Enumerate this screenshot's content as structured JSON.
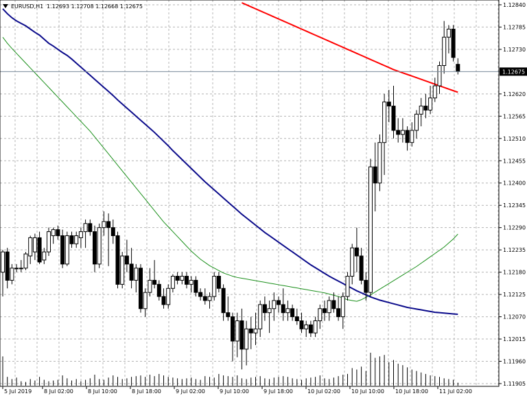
{
  "header": {
    "symbol": "EURUSD,H1",
    "ohlc": "1.12693 1.12708 1.12668 1.12675"
  },
  "colors": {
    "background": "#ffffff",
    "grid": "#b4b4b4",
    "bull_body": "#ffffff",
    "bear_body": "#000000",
    "candle_wick": "#000000",
    "volume": "#000000",
    "ma_fast": "#0b0b8b",
    "ma_slow": "#ff0000",
    "ma_green": "#1a8f1a",
    "price_line": "#7a8a9a",
    "price_tag_bg": "#000000",
    "price_tag_text": "#ffffff"
  },
  "chart_data": {
    "type": "candlestick",
    "grid": true,
    "price_axis": {
      "ticks": [
        "1.12840",
        "1.12785",
        "1.12730",
        "1.12620",
        "1.12565",
        "1.12510",
        "1.12455",
        "1.12400",
        "1.12345",
        "1.12290",
        "1.12235",
        "1.12180",
        "1.12125",
        "1.12070",
        "1.12015",
        "1.11960",
        "1.11905"
      ],
      "current": "1.12675",
      "ylim": [
        1.11905,
        1.12845
      ]
    },
    "time_axis": {
      "labels": [
        "5 Jul 2019",
        "8 Jul 02:00",
        "8 Jul 10:00",
        "8 Jul 18:00",
        "9 Jul 02:00",
        "9 Jul 10:00",
        "9 Jul 18:00",
        "10 Jul 02:00",
        "10 Jul 10:00",
        "10 Jul 18:00",
        "11 Jul 02:00"
      ]
    },
    "candles": [
      {
        "o": 1.1218,
        "h": 1.12235,
        "l": 1.1212,
        "c": 1.1223
      },
      {
        "o": 1.1223,
        "h": 1.1224,
        "l": 1.1214,
        "c": 1.1216
      },
      {
        "o": 1.1216,
        "h": 1.122,
        "l": 1.1215,
        "c": 1.1219
      },
      {
        "o": 1.1219,
        "h": 1.122,
        "l": 1.1218,
        "c": 1.1219
      },
      {
        "o": 1.1219,
        "h": 1.1221,
        "l": 1.1218,
        "c": 1.1219
      },
      {
        "o": 1.1219,
        "h": 1.1223,
        "l": 1.12185,
        "c": 1.12225
      },
      {
        "o": 1.1222,
        "h": 1.1227,
        "l": 1.122,
        "c": 1.12265
      },
      {
        "o": 1.1223,
        "h": 1.12275,
        "l": 1.1221,
        "c": 1.12265
      },
      {
        "o": 1.12265,
        "h": 1.1228,
        "l": 1.122,
        "c": 1.12205
      },
      {
        "o": 1.1221,
        "h": 1.1224,
        "l": 1.122,
        "c": 1.1223
      },
      {
        "o": 1.1223,
        "h": 1.1229,
        "l": 1.1222,
        "c": 1.1228
      },
      {
        "o": 1.1227,
        "h": 1.1229,
        "l": 1.1225,
        "c": 1.12285
      },
      {
        "o": 1.12285,
        "h": 1.12295,
        "l": 1.1226,
        "c": 1.1227
      },
      {
        "o": 1.1227,
        "h": 1.12285,
        "l": 1.1219,
        "c": 1.122
      },
      {
        "o": 1.122,
        "h": 1.1228,
        "l": 1.12195,
        "c": 1.1227
      },
      {
        "o": 1.1227,
        "h": 1.1228,
        "l": 1.1224,
        "c": 1.1225
      },
      {
        "o": 1.1225,
        "h": 1.1228,
        "l": 1.1224,
        "c": 1.1227
      },
      {
        "o": 1.12265,
        "h": 1.1229,
        "l": 1.1224,
        "c": 1.1228
      },
      {
        "o": 1.1228,
        "h": 1.1231,
        "l": 1.1224,
        "c": 1.123
      },
      {
        "o": 1.123,
        "h": 1.1231,
        "l": 1.1227,
        "c": 1.1228
      },
      {
        "o": 1.1228,
        "h": 1.12295,
        "l": 1.1218,
        "c": 1.122
      },
      {
        "o": 1.122,
        "h": 1.123,
        "l": 1.1219,
        "c": 1.1229
      },
      {
        "o": 1.1229,
        "h": 1.1233,
        "l": 1.1227,
        "c": 1.12305
      },
      {
        "o": 1.12305,
        "h": 1.12325,
        "l": 1.12195,
        "c": 1.1229
      },
      {
        "o": 1.1229,
        "h": 1.1231,
        "l": 1.1225,
        "c": 1.1227
      },
      {
        "o": 1.1227,
        "h": 1.1228,
        "l": 1.1214,
        "c": 1.1215
      },
      {
        "o": 1.1215,
        "h": 1.1223,
        "l": 1.1214,
        "c": 1.1222
      },
      {
        "o": 1.1222,
        "h": 1.1226,
        "l": 1.1218,
        "c": 1.122
      },
      {
        "o": 1.122,
        "h": 1.1224,
        "l": 1.1214,
        "c": 1.1216
      },
      {
        "o": 1.1216,
        "h": 1.122,
        "l": 1.1213,
        "c": 1.1219
      },
      {
        "o": 1.1219,
        "h": 1.122,
        "l": 1.1208,
        "c": 1.1209
      },
      {
        "o": 1.1209,
        "h": 1.1214,
        "l": 1.1207,
        "c": 1.1213
      },
      {
        "o": 1.1213,
        "h": 1.1219,
        "l": 1.1212,
        "c": 1.1216
      },
      {
        "o": 1.1216,
        "h": 1.1221,
        "l": 1.1214,
        "c": 1.1215
      },
      {
        "o": 1.1215,
        "h": 1.1216,
        "l": 1.1211,
        "c": 1.1212
      },
      {
        "o": 1.1212,
        "h": 1.1214,
        "l": 1.1209,
        "c": 1.121
      },
      {
        "o": 1.121,
        "h": 1.1215,
        "l": 1.1209,
        "c": 1.1214
      },
      {
        "o": 1.1214,
        "h": 1.12175,
        "l": 1.1213,
        "c": 1.1217
      },
      {
        "o": 1.1217,
        "h": 1.1218,
        "l": 1.1215,
        "c": 1.1216
      },
      {
        "o": 1.1216,
        "h": 1.1218,
        "l": 1.1215,
        "c": 1.1217
      },
      {
        "o": 1.1217,
        "h": 1.1218,
        "l": 1.1214,
        "c": 1.1215
      },
      {
        "o": 1.1215,
        "h": 1.1217,
        "l": 1.1213,
        "c": 1.1216
      },
      {
        "o": 1.1216,
        "h": 1.1217,
        "l": 1.1212,
        "c": 1.1213
      },
      {
        "o": 1.1213,
        "h": 1.1214,
        "l": 1.1211,
        "c": 1.1212
      },
      {
        "o": 1.1212,
        "h": 1.1214,
        "l": 1.121,
        "c": 1.1211
      },
      {
        "o": 1.1211,
        "h": 1.1213,
        "l": 1.1209,
        "c": 1.1212
      },
      {
        "o": 1.1212,
        "h": 1.1218,
        "l": 1.1211,
        "c": 1.1217
      },
      {
        "o": 1.1217,
        "h": 1.1218,
        "l": 1.1213,
        "c": 1.1214
      },
      {
        "o": 1.1214,
        "h": 1.1215,
        "l": 1.1206,
        "c": 1.1208
      },
      {
        "o": 1.1208,
        "h": 1.1212,
        "l": 1.1206,
        "c": 1.1207
      },
      {
        "o": 1.1207,
        "h": 1.1208,
        "l": 1.1196,
        "c": 1.1201
      },
      {
        "o": 1.1201,
        "h": 1.1208,
        "l": 1.1197,
        "c": 1.1206
      },
      {
        "o": 1.1206,
        "h": 1.1209,
        "l": 1.1194,
        "c": 1.1199
      },
      {
        "o": 1.1199,
        "h": 1.1206,
        "l": 1.1195,
        "c": 1.1204
      },
      {
        "o": 1.1204,
        "h": 1.1207,
        "l": 1.1199,
        "c": 1.1203
      },
      {
        "o": 1.1203,
        "h": 1.1208,
        "l": 1.12,
        "c": 1.1204
      },
      {
        "o": 1.1204,
        "h": 1.1211,
        "l": 1.1202,
        "c": 1.121
      },
      {
        "o": 1.121,
        "h": 1.1212,
        "l": 1.1206,
        "c": 1.1208
      },
      {
        "o": 1.1208,
        "h": 1.1211,
        "l": 1.1203,
        "c": 1.1209
      },
      {
        "o": 1.1209,
        "h": 1.1213,
        "l": 1.1206,
        "c": 1.1211
      },
      {
        "o": 1.1211,
        "h": 1.1212,
        "l": 1.1208,
        "c": 1.121
      },
      {
        "o": 1.121,
        "h": 1.1214,
        "l": 1.1206,
        "c": 1.1208
      },
      {
        "o": 1.1208,
        "h": 1.1211,
        "l": 1.1206,
        "c": 1.1209
      },
      {
        "o": 1.1209,
        "h": 1.121,
        "l": 1.1206,
        "c": 1.1207
      },
      {
        "o": 1.1207,
        "h": 1.1209,
        "l": 1.1205,
        "c": 1.1206
      },
      {
        "o": 1.1206,
        "h": 1.1208,
        "l": 1.1203,
        "c": 1.1204
      },
      {
        "o": 1.1204,
        "h": 1.1206,
        "l": 1.1202,
        "c": 1.1205
      },
      {
        "o": 1.1205,
        "h": 1.1206,
        "l": 1.1202,
        "c": 1.1203
      },
      {
        "o": 1.1203,
        "h": 1.1207,
        "l": 1.1202,
        "c": 1.1206
      },
      {
        "o": 1.1206,
        "h": 1.121,
        "l": 1.1204,
        "c": 1.1209
      },
      {
        "o": 1.1209,
        "h": 1.1211,
        "l": 1.1206,
        "c": 1.1208
      },
      {
        "o": 1.1208,
        "h": 1.1212,
        "l": 1.1206,
        "c": 1.1211
      },
      {
        "o": 1.1211,
        "h": 1.1213,
        "l": 1.1208,
        "c": 1.1209
      },
      {
        "o": 1.1209,
        "h": 1.1212,
        "l": 1.1206,
        "c": 1.1207
      },
      {
        "o": 1.1207,
        "h": 1.1213,
        "l": 1.1204,
        "c": 1.1212
      },
      {
        "o": 1.1212,
        "h": 1.1218,
        "l": 1.1211,
        "c": 1.1217
      },
      {
        "o": 1.1217,
        "h": 1.1225,
        "l": 1.1215,
        "c": 1.1224
      },
      {
        "o": 1.1224,
        "h": 1.1229,
        "l": 1.1218,
        "c": 1.1222
      },
      {
        "o": 1.1222,
        "h": 1.1224,
        "l": 1.1215,
        "c": 1.1216
      },
      {
        "o": 1.1216,
        "h": 1.1218,
        "l": 1.1211,
        "c": 1.1213
      },
      {
        "o": 1.1213,
        "h": 1.1246,
        "l": 1.1212,
        "c": 1.1244
      },
      {
        "o": 1.1244,
        "h": 1.125,
        "l": 1.1233,
        "c": 1.124
      },
      {
        "o": 1.124,
        "h": 1.1252,
        "l": 1.1238,
        "c": 1.125
      },
      {
        "o": 1.125,
        "h": 1.1262,
        "l": 1.1242,
        "c": 1.126
      },
      {
        "o": 1.126,
        "h": 1.1263,
        "l": 1.1255,
        "c": 1.1259
      },
      {
        "o": 1.1259,
        "h": 1.1264,
        "l": 1.1251,
        "c": 1.1253
      },
      {
        "o": 1.1253,
        "h": 1.1256,
        "l": 1.125,
        "c": 1.1252
      },
      {
        "o": 1.1252,
        "h": 1.1256,
        "l": 1.125,
        "c": 1.1253
      },
      {
        "o": 1.1253,
        "h": 1.1254,
        "l": 1.1248,
        "c": 1.125
      },
      {
        "o": 1.125,
        "h": 1.1255,
        "l": 1.1249,
        "c": 1.1253
      },
      {
        "o": 1.1253,
        "h": 1.1258,
        "l": 1.1251,
        "c": 1.1257
      },
      {
        "o": 1.1257,
        "h": 1.1261,
        "l": 1.1254,
        "c": 1.1259
      },
      {
        "o": 1.1259,
        "h": 1.1262,
        "l": 1.1256,
        "c": 1.1258
      },
      {
        "o": 1.1258,
        "h": 1.1264,
        "l": 1.1257,
        "c": 1.1261
      },
      {
        "o": 1.1261,
        "h": 1.1266,
        "l": 1.126,
        "c": 1.1264
      },
      {
        "o": 1.1264,
        "h": 1.127,
        "l": 1.1262,
        "c": 1.1269
      },
      {
        "o": 1.1269,
        "h": 1.128,
        "l": 1.1267,
        "c": 1.1276
      },
      {
        "o": 1.1276,
        "h": 1.1279,
        "l": 1.1272,
        "c": 1.1278
      },
      {
        "o": 1.1278,
        "h": 1.1279,
        "l": 1.127,
        "c": 1.1271
      },
      {
        "o": 1.12693,
        "h": 1.12708,
        "l": 1.12668,
        "c": 1.12675
      }
    ],
    "volume": [
      40,
      12,
      9,
      11,
      6,
      5,
      9,
      7,
      12,
      8,
      6,
      7,
      8,
      14,
      10,
      7,
      9,
      6,
      8,
      10,
      15,
      9,
      8,
      11,
      14,
      12,
      9,
      10,
      12,
      13,
      14,
      12,
      15,
      13,
      16,
      14,
      12,
      11,
      10,
      9,
      10,
      11,
      9,
      8,
      13,
      12,
      11,
      16,
      14,
      13,
      12,
      14,
      10,
      9,
      11,
      12,
      13,
      10,
      9,
      11,
      12,
      13,
      12,
      10,
      9,
      8,
      10,
      11,
      12,
      14,
      10,
      9,
      11,
      13,
      15,
      16,
      24,
      22,
      26,
      20,
      45,
      38,
      40,
      42,
      32,
      35,
      30,
      28,
      25,
      22,
      20,
      18,
      16,
      14,
      13,
      12,
      10,
      9,
      8,
      4
    ],
    "ma_fast": [
      1.1283,
      1.12818,
      1.12808,
      1.128,
      1.12794,
      1.12788,
      1.1278,
      1.12772,
      1.12765,
      1.12755,
      1.12745,
      1.12738,
      1.1273,
      1.12722,
      1.12715,
      1.12706,
      1.12696,
      1.12686,
      1.12676,
      1.12666,
      1.12656,
      1.12646,
      1.12636,
      1.12626,
      1.12616,
      1.12605,
      1.12595,
      1.12585,
      1.12575,
      1.12565,
      1.12555,
      1.12545,
      1.12535,
      1.12525,
      1.12514,
      1.12503,
      1.12492,
      1.1248,
      1.12469,
      1.12458,
      1.12447,
      1.12436,
      1.12425,
      1.12414,
      1.12403,
      1.12393,
      1.12383,
      1.12373,
      1.12363,
      1.12353,
      1.12343,
      1.12333,
      1.12323,
      1.12314,
      1.12305,
      1.12296,
      1.12287,
      1.12278,
      1.1227,
      1.12262,
      1.12254,
      1.12246,
      1.12238,
      1.1223,
      1.12222,
      1.12214,
      1.12206,
      1.12198,
      1.12191,
      1.12184,
      1.12177,
      1.1217,
      1.12164,
      1.12158,
      1.12152,
      1.12146,
      1.1214,
      1.12134,
      1.12129,
      1.12124,
      1.12119,
      1.12115,
      1.12111,
      1.12108,
      1.12105,
      1.12102,
      1.12099,
      1.12096,
      1.12093,
      1.12091,
      1.12089,
      1.12087,
      1.12085,
      1.12083,
      1.12081,
      1.1208,
      1.12079,
      1.12078,
      1.12077,
      1.12076
    ],
    "ma_slow": [
      1.12845,
      1.1284,
      1.12835,
      1.1283,
      1.12825,
      1.1282,
      1.12815,
      1.1281,
      1.12805,
      1.128,
      1.12795,
      1.1279,
      1.12785,
      1.1278,
      1.12775,
      1.1277,
      1.12765,
      1.1276,
      1.12755,
      1.1275,
      1.12745,
      1.1274,
      1.12735,
      1.1273,
      1.12725,
      1.1272,
      1.12715,
      1.1271,
      1.12705,
      1.127,
      1.12695,
      1.1269,
      1.12685,
      1.1268,
      1.12676,
      1.12672,
      1.12668,
      1.12664,
      1.1266,
      1.12656,
      1.12652,
      1.12648,
      1.12644,
      1.1264,
      1.12636,
      1.12632,
      1.12628,
      1.12624
    ],
    "ma_slow_start": 52,
    "ma_green": [
      1.1276,
      1.12745,
      1.12732,
      1.1272,
      1.12708,
      1.12696,
      1.12684,
      1.12672,
      1.1266,
      1.12648,
      1.12636,
      1.12624,
      1.12612,
      1.126,
      1.12588,
      1.12576,
      1.12564,
      1.12552,
      1.1254,
      1.12528,
      1.12514,
      1.125,
      1.12486,
      1.12472,
      1.12458,
      1.12444,
      1.1243,
      1.12416,
      1.12402,
      1.12388,
      1.12374,
      1.1236,
      1.12346,
      1.12332,
      1.12318,
      1.12304,
      1.12292,
      1.1228,
      1.12268,
      1.12256,
      1.12244,
      1.12232,
      1.12222,
      1.12212,
      1.12204,
      1.12196,
      1.1219,
      1.12184,
      1.12178,
      1.12174,
      1.1217,
      1.12167,
      1.12165,
      1.12163,
      1.12161,
      1.12159,
      1.12157,
      1.12155,
      1.12153,
      1.12151,
      1.12149,
      1.12147,
      1.12145,
      1.12143,
      1.12141,
      1.12139,
      1.12137,
      1.12135,
      1.12133,
      1.12131,
      1.12129,
      1.12126,
      1.12123,
      1.1212,
      1.12116,
      1.12112,
      1.1211,
      1.12108,
      1.12112,
      1.12118,
      1.12124,
      1.12131,
      1.12138,
      1.12145,
      1.12152,
      1.12159,
      1.12166,
      1.12173,
      1.1218,
      1.12187,
      1.12194,
      1.12202,
      1.1221,
      1.12218,
      1.12226,
      1.12234,
      1.12242,
      1.12252,
      1.12262,
      1.12274
    ]
  }
}
